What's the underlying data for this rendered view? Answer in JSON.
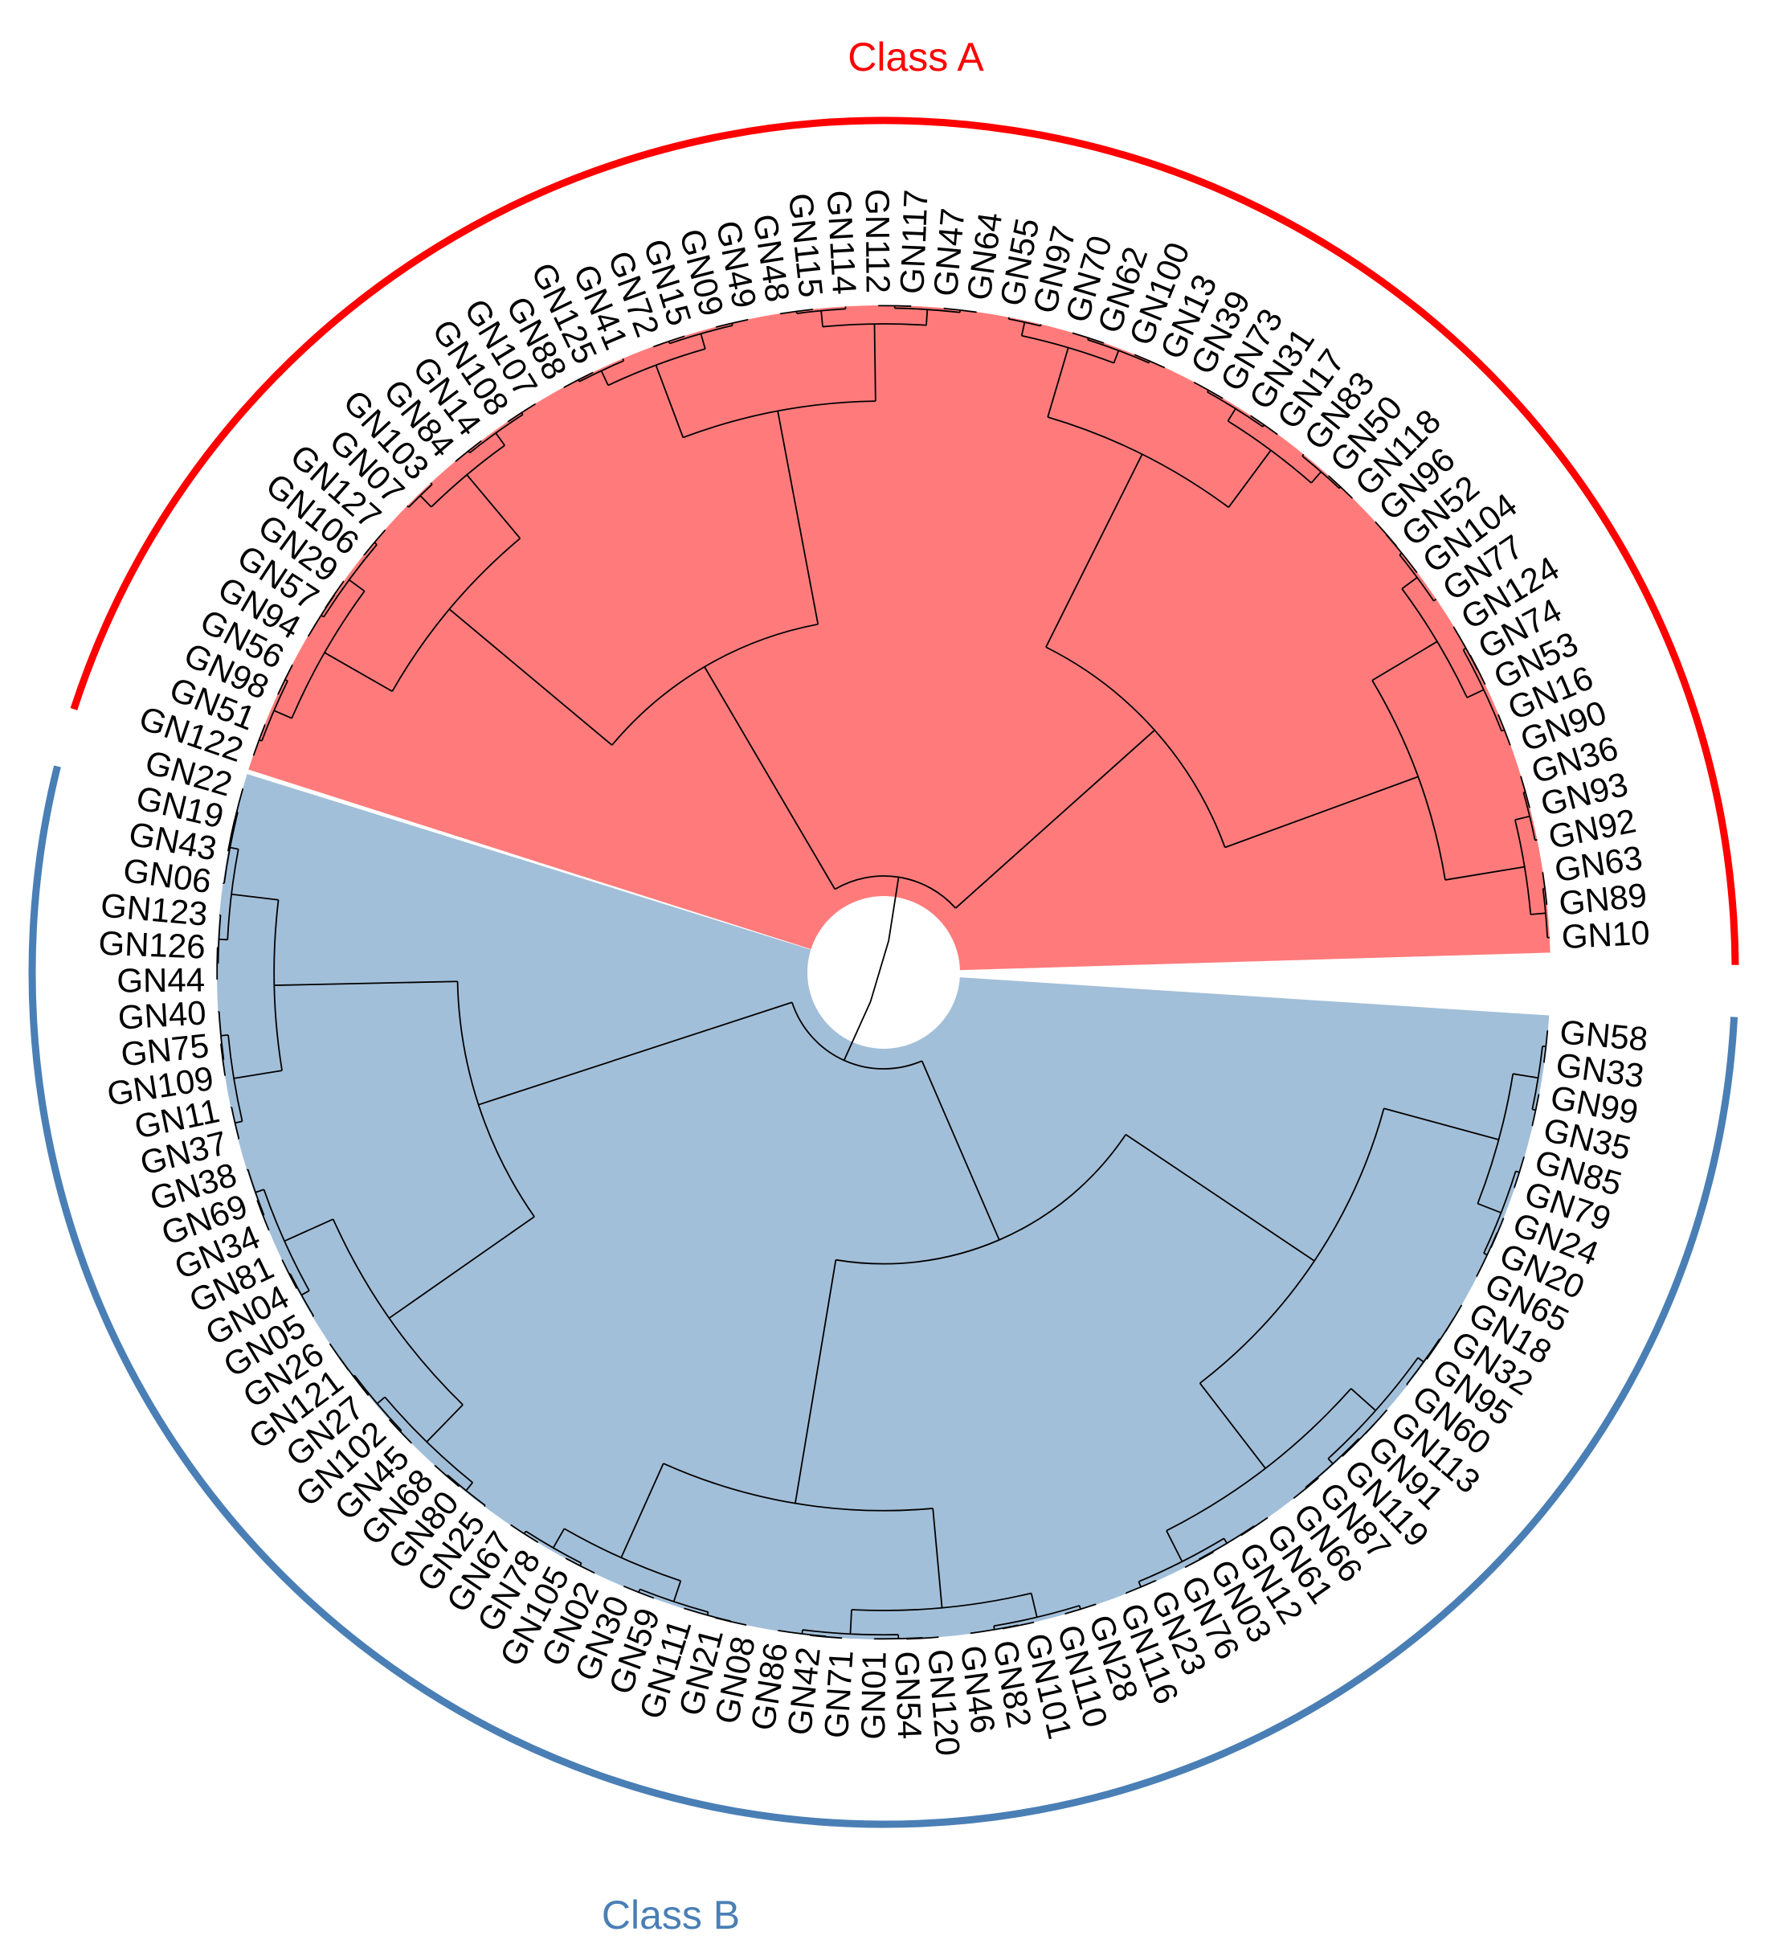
{
  "figure": {
    "type": "circular-dendrogram",
    "classes": [
      {
        "name": "Class A",
        "color": "#ff0000",
        "fill": "#ff7b7b",
        "labels": [
          "GN10",
          "GN89",
          "GN63",
          "GN92",
          "GN93",
          "GN36",
          "GN90",
          "GN16",
          "GN53",
          "GN74",
          "GN124",
          "GN77",
          "GN104",
          "GN52",
          "GN96",
          "GN118",
          "GN50",
          "GN83",
          "GN17",
          "GN31",
          "GN73",
          "GN39",
          "GN13",
          "GN100",
          "GN62",
          "GN70",
          "GN97",
          "GN55",
          "GN64",
          "GN47",
          "GN117",
          "GN112",
          "GN114",
          "GN115",
          "GN48",
          "GN49",
          "GN09",
          "GN15",
          "GN72",
          "GN41",
          "GN125",
          "GN88",
          "GN107",
          "GN108",
          "GN14",
          "GN84",
          "GN103",
          "GN07",
          "GN127",
          "GN106",
          "GN29",
          "GN57",
          "GN94",
          "GN56",
          "GN98",
          "GN51",
          "GN122"
        ]
      },
      {
        "name": "Class B",
        "color": "#4a7fb5",
        "fill": "#a2bfd9",
        "labels": [
          "GN22",
          "GN19",
          "GN43",
          "GN06",
          "GN123",
          "GN126",
          "GN44",
          "GN40",
          "GN75",
          "GN109",
          "GN11",
          "GN37",
          "GN38",
          "GN69",
          "GN34",
          "GN81",
          "GN04",
          "GN05",
          "GN26",
          "GN121",
          "GN27",
          "GN102",
          "GN45",
          "GN68",
          "GN80",
          "GN25",
          "GN67",
          "GN78",
          "GN105",
          "GN02",
          "GN30",
          "GN59",
          "GN111",
          "GN21",
          "GN08",
          "GN86",
          "GN42",
          "GN71",
          "GN01",
          "GN54",
          "GN120",
          "GN46",
          "GN82",
          "GN101",
          "GN110",
          "GN28",
          "GN116",
          "GN23",
          "GN76",
          "GN03",
          "GN12",
          "GN61",
          "GN66",
          "GN87",
          "GN119",
          "GN91",
          "GN113",
          "GN60",
          "GN95",
          "GN32",
          "GN18",
          "GN65",
          "GN20",
          "GN24",
          "GN79",
          "GN85",
          "GN35",
          "GN99",
          "GN33",
          "GN58"
        ]
      }
    ]
  }
}
